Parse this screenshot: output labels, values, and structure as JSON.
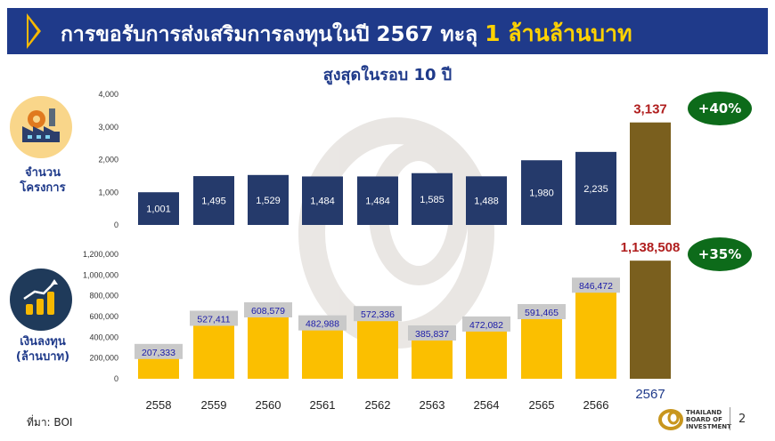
{
  "header": {
    "title_main": "การขอรับการส่งเสริมการลงทุนในปี 2567 ทะลุ",
    "title_highlight": "1 ล้านล้านบาท",
    "subtitle": "สูงสุดในรอบ 10 ปี"
  },
  "labels": {
    "projects_line1": "จำนวน",
    "projects_line2": "โครงการ",
    "investment_line1": "เงินลงทุน",
    "investment_line2": "(ล้านบาท)"
  },
  "badges": {
    "projects_growth": "+40%",
    "investment_growth": "+35%"
  },
  "footer": {
    "source": "ที่มา: BOI",
    "logo_line1": "THAILAND",
    "logo_line2": "BOARD OF",
    "logo_line3": "INVESTMENT",
    "page_number": "2"
  },
  "colors": {
    "navy": "#253a6b",
    "gold": "#fbbf00",
    "highlight_bar": "#7a5f1e",
    "highlight_text": "#b01e1e",
    "badge_green": "#0d6b1a"
  },
  "chart_data": [
    {
      "type": "bar",
      "categories": [
        "2558",
        "2559",
        "2560",
        "2561",
        "2562",
        "2563",
        "2564",
        "2565",
        "2566",
        "2567"
      ],
      "values": [
        1001,
        1495,
        1529,
        1484,
        1484,
        1585,
        1488,
        1980,
        2235,
        3137
      ],
      "value_labels": [
        "1,001",
        "1,495",
        "1,529",
        "1,484",
        "1,484",
        "1,585",
        "1,488",
        "1,980",
        "2,235",
        "3,137"
      ],
      "ylim": [
        0,
        4000
      ],
      "yticks": [
        0,
        1000,
        2000,
        3000,
        4000
      ],
      "ytick_labels": [
        "0",
        "1,000",
        "2,000",
        "3,000",
        "4,000"
      ],
      "ylabel": "จำนวนโครงการ",
      "highlight_index": 9
    },
    {
      "type": "bar",
      "categories": [
        "2558",
        "2559",
        "2560",
        "2561",
        "2562",
        "2563",
        "2564",
        "2565",
        "2566",
        "2567"
      ],
      "values": [
        207333,
        527411,
        608579,
        482988,
        572336,
        385837,
        472082,
        591465,
        846472,
        1138508
      ],
      "value_labels": [
        "207,333",
        "527,411",
        "608,579",
        "482,988",
        "572,336",
        "385,837",
        "472,082",
        "591,465",
        "846,472",
        "1,138,508"
      ],
      "ylim": [
        0,
        1200000
      ],
      "yticks": [
        0,
        200000,
        400000,
        600000,
        800000,
        1000000,
        1200000
      ],
      "ytick_labels": [
        "0",
        "200,000",
        "400,000",
        "600,000",
        "800,000",
        "1,000,000",
        "1,200,000"
      ],
      "ylabel": "เงินลงทุน (ล้านบาท)",
      "highlight_index": 9
    }
  ]
}
